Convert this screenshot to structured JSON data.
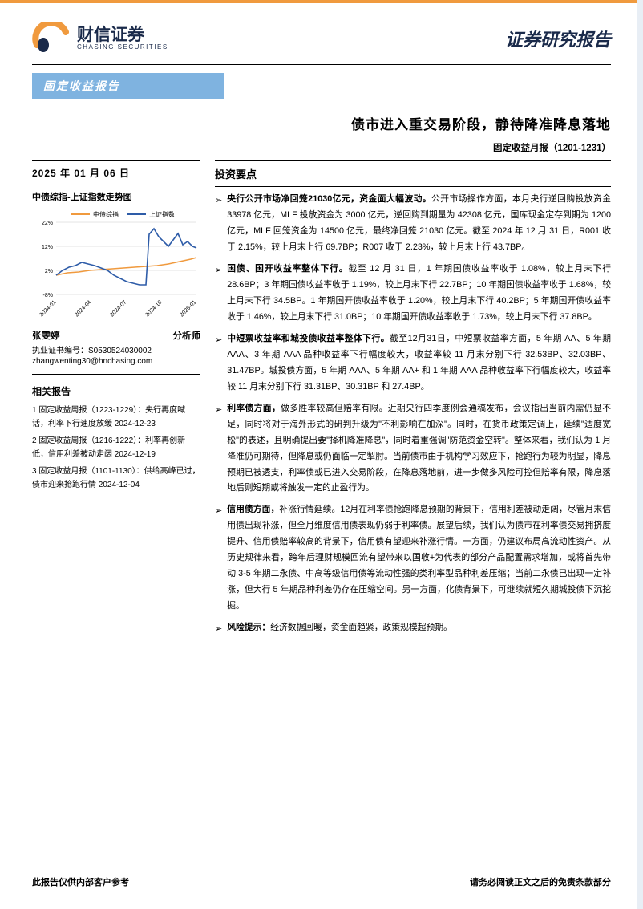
{
  "brand": {
    "name_cn": "财信证券",
    "name_en": "CHASING SECURITIES",
    "logo_colors": {
      "primary": "#f09a3e",
      "accent": "#1a2a4a"
    }
  },
  "header": {
    "report_type": "证券研究报告",
    "category_bar": "固定收益报告"
  },
  "title": {
    "main": "债市进入重交易阶段，静待降准降息落地",
    "sub": "固定收益月报（1201-1231）"
  },
  "left": {
    "date": "2025 年 01 月 06 日",
    "chart_title": "中债综指-上证指数走势图",
    "analyst": {
      "name": "张雯婷",
      "role": "分析师",
      "license_label": "执业证书编号：",
      "license": "S0530524030002",
      "email": "zhangwenting30@hnchasing.com"
    },
    "related_title": "相关报告",
    "related": [
      "1 固定收益周报（1223-1229）：央行再度喊话，利率下行速度放缓 2024-12-23",
      "2 固定收益周报（1216-1222）：利率再创新低，信用利差被动走阔 2024-12-19",
      "3 固定收益月报（1101-1130）：供给高峰已过，债市迎来抢跑行情 2024-12-04"
    ]
  },
  "chart": {
    "type": "line",
    "legend": [
      "中债综指",
      "上证指数"
    ],
    "legend_colors": [
      "#f09a3e",
      "#2e5ca8"
    ],
    "x_labels": [
      "2024-01",
      "2024-04",
      "2024-07",
      "2024-10",
      "2025-01"
    ],
    "y_ticks": [
      "-8%",
      "2%",
      "12%",
      "22%"
    ],
    "ylim": [
      -8,
      22
    ],
    "grid_color": "#c8c8c8",
    "background": "#ffffff",
    "font_size": 8,
    "series": {
      "zhongzhai": [
        0,
        1,
        1.5,
        2,
        2.3,
        2.8,
        3,
        3.3,
        3.5,
        4,
        4.5,
        5.5,
        6.5
      ],
      "shangzheng": [
        0,
        2,
        3.5,
        4,
        6,
        5,
        3,
        0,
        -2,
        -3,
        -4,
        17,
        20,
        16,
        14,
        18,
        12,
        13
      ]
    }
  },
  "right": {
    "section_title": "投资要点",
    "bullets": [
      {
        "lead": "央行公开市场净回笼21030亿元，资金面大幅波动。",
        "body": "公开市场操作方面，本月央行逆回购投放资金 33978 亿元，MLF 投放资金为 3000 亿元，逆回购到期量为 42308 亿元，国库现金定存到期为 1200 亿元，MLF 回笼资金为 14500 亿元，最终净回笼 21030 亿元。截至 2024 年 12 月 31 日，R001 收于 2.15%，较上月末上行 69.7BP；R007 收于 2.23%，较上月末上行 43.7BP。"
      },
      {
        "lead": "国债、国开收益率整体下行。",
        "body": "截至 12 月 31 日，1 年期国债收益率收于 1.08%，较上月末下行 28.6BP；3 年期国债收益率收于 1.19%，较上月末下行 22.7BP；10 年期国债收益率收于 1.68%，较上月末下行 34.5BP。1 年期国开债收益率收于 1.20%，较上月末下行 40.2BP；5 年期国开债收益率收于 1.46%，较上月末下行 31.0BP；10 年期国开债收益率收于 1.73%，较上月末下行 37.8BP。"
      },
      {
        "lead": "中短票收益率和城投债收益率整体下行。",
        "body": "截至12月31日，中短票收益率方面，5 年期 AA、5 年期 AAA、3 年期 AAA 品种收益率下行幅度较大，收益率较 11 月末分别下行 32.53BP、32.03BP、31.47BP。城投债方面，5 年期 AAA、5 年期 AA+ 和 1 年期 AAA 品种收益率下行幅度较大，收益率较 11 月末分别下行 31.31BP、30.31BP 和 27.4BP。"
      },
      {
        "lead": "利率债方面，",
        "body": "做多胜率较高但赔率有限。近期央行四季度例会通稿发布，会议指出当前内需仍显不足，同时将对于海外形式的研判升级为\"不利影响在加深\"。同时，在货币政策定调上，延续\"适度宽松\"的表述，且明确提出要\"择机降准降息\"，同时着重强调\"防范资金空转\"。整体来看，我们认为 1 月降准仍可期待，但降息或仍面临一定掣肘。当前债市由于机构学习效应下，抢跑行为较为明显，降息预期已被透支，利率债或已进入交易阶段，在降息落地前，进一步做多风险可控但赔率有限，降息落地后则短期或将触发一定的止盈行为。"
      },
      {
        "lead": "信用债方面，",
        "body": "补涨行情延续。12月在利率债抢跑降息预期的背景下，信用利差被动走阔，尽管月末信用债出现补涨，但全月维度信用债表现仍弱于利率债。展望后续，我们认为债市在利率债交易拥挤度提升、信用债赔率较高的背景下，信用债有望迎来补涨行情。一方面，仍建议布局高流动性资产。从历史规律来看，跨年后理财规模回流有望带来以国收+为代表的部分产品配置需求增加，或将首先带动 3-5 年期二永债、中高等级信用债等流动性强的类利率型品种利差压缩；当前二永债已出现一定补涨，但大行 5 年期品种利差仍存在压缩空间。另一方面，化债背景下，可继续就短久期城投债下沉挖掘。"
      },
      {
        "lead": "风险提示：",
        "body": "经济数据回暖，资金面趋紧，政策规模超预期。"
      }
    ]
  },
  "footer": {
    "left": "此报告仅供内部客户参考",
    "right": "请务必阅读正文之后的免责条款部分"
  },
  "colors": {
    "top_stripe": "#f09a3e",
    "blue_bar": "#7fb3e0",
    "right_stripe": "#e8eef5",
    "text": "#000000"
  }
}
